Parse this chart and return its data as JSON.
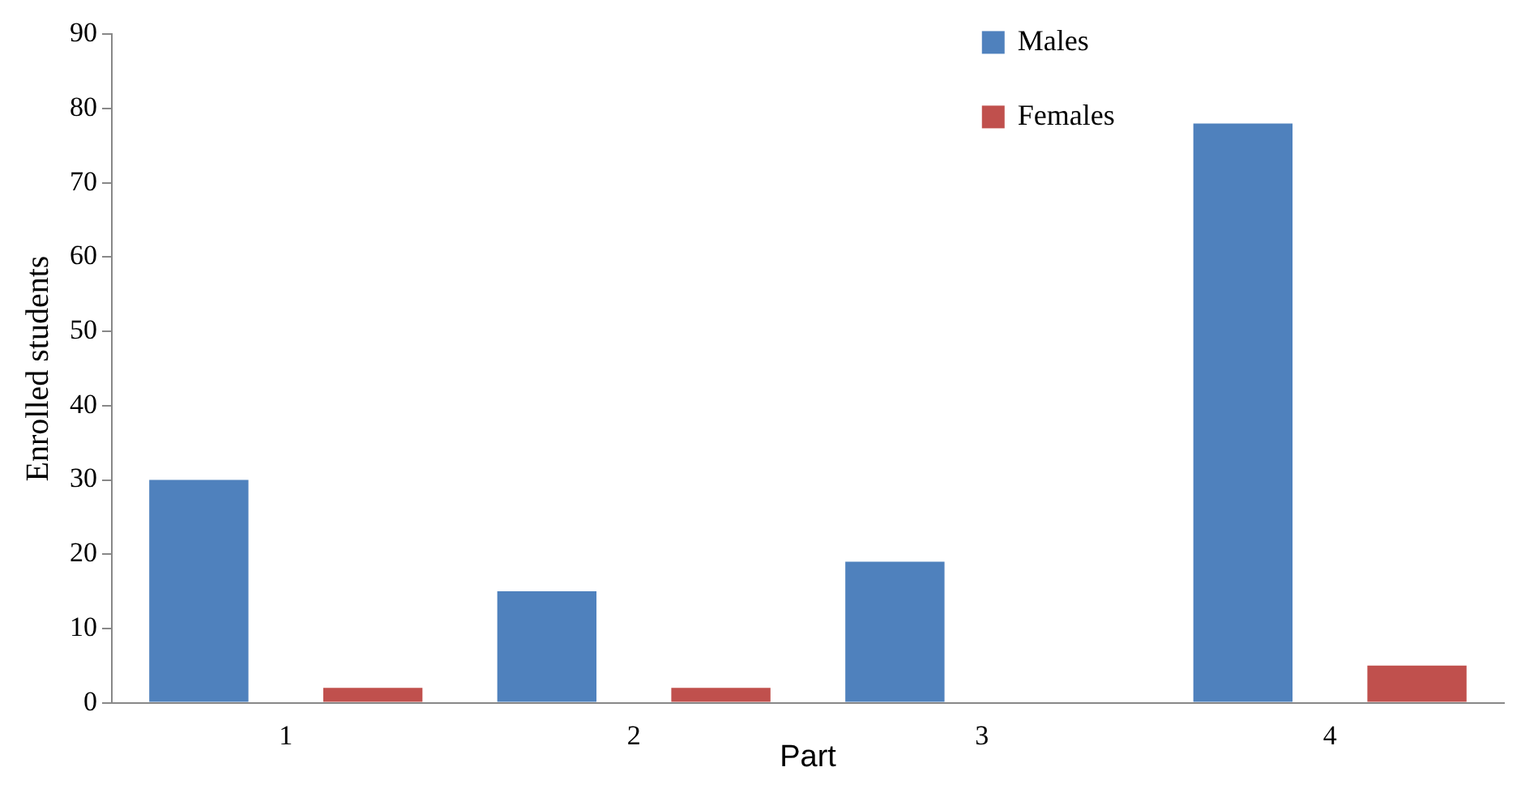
{
  "chart_data": {
    "type": "bar",
    "xlabel": "Part",
    "ylabel": "Enrolled students",
    "categories": [
      "1",
      "2",
      "3",
      "4"
    ],
    "series": [
      {
        "name": "Males",
        "color": "#4f81bd",
        "values": [
          30,
          15,
          19,
          78
        ]
      },
      {
        "name": "Females",
        "color": "#c0504d",
        "values": [
          2,
          2,
          0,
          5
        ]
      }
    ],
    "ylim": [
      0,
      90
    ],
    "yticks": [
      0,
      10,
      20,
      30,
      40,
      50,
      60,
      70,
      80,
      90
    ],
    "grid": false,
    "legend": "top right"
  }
}
